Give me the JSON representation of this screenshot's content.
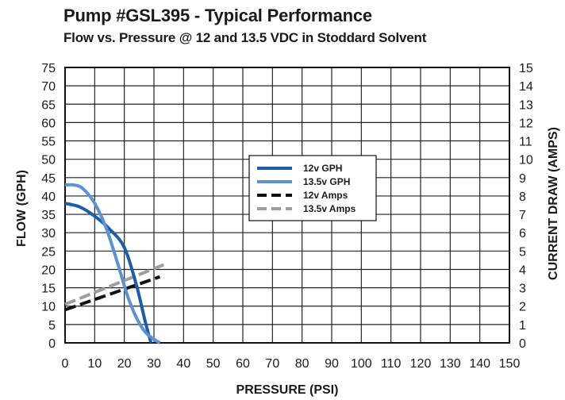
{
  "chart_data": {
    "type": "line",
    "title": "Pump #GSL395 - Typical Performance",
    "subtitle": "Flow vs. Pressure @ 12 and 13.5 VDC in Stoddard Solvent",
    "xlabel": "PRESSURE (PSI)",
    "ylabel": "FLOW (GPH)",
    "y2label": "CURRENT DRAW (AMPS)",
    "xlim": [
      0,
      150
    ],
    "ylim": [
      0,
      75
    ],
    "y2lim": [
      0,
      15
    ],
    "grid": true,
    "legend_position": "center",
    "x_ticks": [
      0,
      10,
      20,
      30,
      40,
      50,
      60,
      70,
      80,
      90,
      100,
      110,
      120,
      130,
      140,
      150
    ],
    "y_ticks": [
      0,
      5,
      10,
      15,
      20,
      25,
      30,
      35,
      40,
      45,
      50,
      55,
      60,
      65,
      70,
      75
    ],
    "y2_ticks": [
      0,
      1,
      2,
      3,
      4,
      5,
      6,
      7,
      8,
      9,
      10,
      11,
      12,
      13,
      14,
      15
    ],
    "series": [
      {
        "name": "12v GPH",
        "axis": "left",
        "color": "#1a5fa8",
        "style": "solid",
        "x": [
          0,
          5,
          10,
          15,
          20,
          24,
          27,
          29
        ],
        "y": [
          38,
          37,
          34.5,
          31,
          26,
          16,
          6,
          0
        ]
      },
      {
        "name": "13.5v GPH",
        "axis": "left",
        "color": "#5b93d0",
        "style": "solid",
        "x": [
          0,
          3,
          6,
          10,
          14,
          18,
          21,
          24,
          27,
          30,
          32
        ],
        "y": [
          43,
          43,
          42,
          38,
          31,
          21,
          13,
          7,
          3,
          1,
          0
        ]
      },
      {
        "name": "12v Amps",
        "axis": "right",
        "color": "#111111",
        "style": "dashed",
        "x": [
          0,
          32
        ],
        "y": [
          1.8,
          3.6
        ]
      },
      {
        "name": "13.5v Amps",
        "axis": "right",
        "color": "#9e9e9e",
        "style": "dashed",
        "x": [
          0,
          34
        ],
        "y": [
          2.1,
          4.3
        ]
      }
    ]
  }
}
